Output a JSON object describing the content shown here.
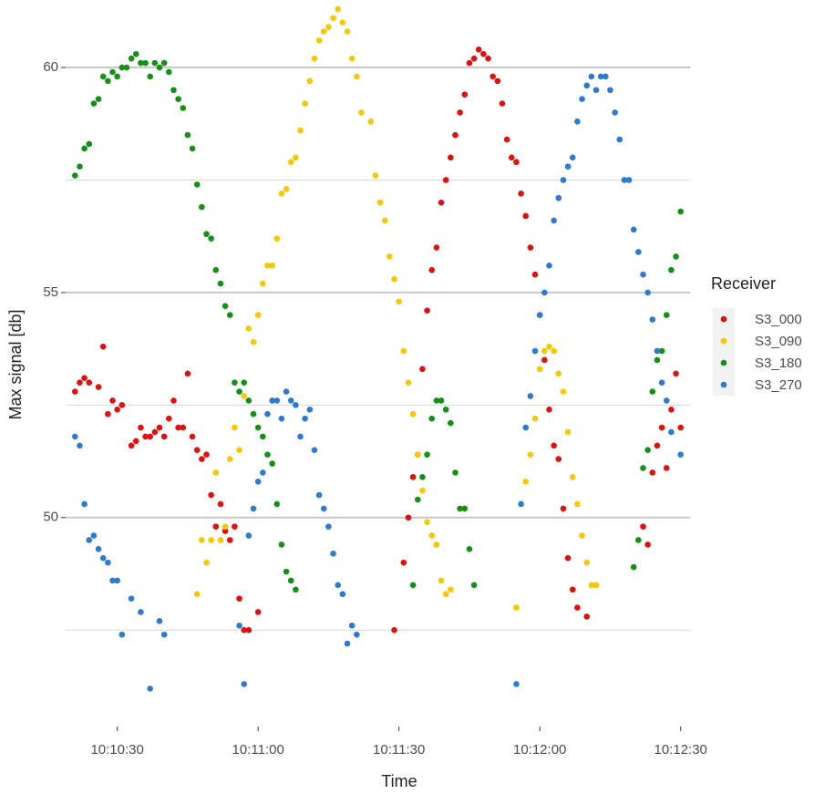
{
  "chart_data": {
    "type": "scatter",
    "xlabel": "Time",
    "ylabel": "Max signal [db]",
    "legend_title": "Receiver",
    "legend": "right",
    "xlim": [
      "10:10:19",
      "10:12:32"
    ],
    "xticks": [
      "10:10:30",
      "10:11:00",
      "10:11:30",
      "10:12:00",
      "10:12:30"
    ],
    "ylim": [
      45.6,
      61.5
    ],
    "yticks": [
      50,
      55,
      60
    ],
    "y_minor_grid": [
      47.5,
      52.5,
      57.5
    ],
    "grid": true,
    "series": [
      {
        "name": "S3_000",
        "color": "#e01010",
        "x": [
          "10:10:21",
          "10:10:22",
          "10:10:23",
          "10:10:24",
          "10:10:26",
          "10:10:27",
          "10:10:28",
          "10:10:29",
          "10:10:30",
          "10:10:31",
          "10:10:33",
          "10:10:34",
          "10:10:35",
          "10:10:36",
          "10:10:37",
          "10:10:38",
          "10:10:39",
          "10:10:40",
          "10:10:41",
          "10:10:42",
          "10:10:43",
          "10:10:44",
          "10:10:45",
          "10:10:46",
          "10:10:47",
          "10:10:48",
          "10:10:49",
          "10:10:50",
          "10:10:51",
          "10:10:52",
          "10:10:53",
          "10:10:54",
          "10:10:55",
          "10:10:56",
          "10:10:57",
          "10:10:58",
          "10:11:00",
          "10:11:29",
          "10:11:31",
          "10:11:32",
          "10:11:33",
          "10:11:34",
          "10:11:35",
          "10:11:36",
          "10:11:37",
          "10:11:38",
          "10:11:39",
          "10:11:40",
          "10:11:41",
          "10:11:42",
          "10:11:43",
          "10:11:44",
          "10:11:45",
          "10:11:46",
          "10:11:47",
          "10:11:48",
          "10:11:49",
          "10:11:50",
          "10:11:51",
          "10:11:52",
          "10:11:53",
          "10:11:54",
          "10:11:55",
          "10:11:56",
          "10:11:57",
          "10:11:58",
          "10:11:59",
          "10:12:00",
          "10:12:01",
          "10:12:02",
          "10:12:03",
          "10:12:04",
          "10:12:05",
          "10:12:06",
          "10:12:07",
          "10:12:08",
          "10:12:10",
          "10:12:22",
          "10:12:23",
          "10:12:24",
          "10:12:25",
          "10:12:26",
          "10:12:27",
          "10:12:28",
          "10:12:29",
          "10:12:30"
        ],
        "values": [
          52.8,
          53.0,
          53.1,
          53.0,
          52.9,
          53.8,
          52.3,
          52.6,
          52.4,
          52.5,
          51.6,
          51.7,
          52.0,
          51.8,
          51.8,
          51.9,
          52.0,
          51.8,
          52.2,
          52.6,
          52.0,
          52.0,
          53.2,
          51.8,
          51.5,
          51.3,
          51.4,
          50.5,
          49.8,
          50.3,
          49.7,
          49.5,
          49.8,
          48.2,
          47.5,
          47.5,
          47.9,
          47.5,
          49.0,
          50.0,
          50.9,
          51.4,
          53.3,
          54.6,
          55.5,
          56.0,
          57.0,
          57.5,
          58.0,
          58.5,
          59.0,
          59.4,
          60.1,
          60.2,
          60.4,
          60.3,
          60.2,
          59.8,
          59.7,
          59.2,
          58.4,
          58.0,
          57.9,
          57.2,
          56.7,
          56.0,
          55.4,
          54.5,
          53.5,
          52.4,
          51.6,
          51.3,
          50.2,
          49.1,
          48.4,
          48.0,
          47.8,
          49.8,
          49.4,
          51.0,
          51.6,
          52.0,
          51.1,
          52.4,
          53.2,
          52.0
        ]
      },
      {
        "name": "S3_090",
        "color": "#f5c800",
        "x": [
          "10:10:47",
          "10:10:48",
          "10:10:49",
          "10:10:50",
          "10:10:51",
          "10:10:52",
          "10:10:53",
          "10:10:54",
          "10:10:55",
          "10:10:56",
          "10:10:57",
          "10:10:58",
          "10:10:59",
          "10:11:00",
          "10:11:01",
          "10:11:02",
          "10:11:03",
          "10:11:04",
          "10:11:05",
          "10:11:06",
          "10:11:07",
          "10:11:08",
          "10:11:09",
          "10:11:10",
          "10:11:11",
          "10:11:12",
          "10:11:13",
          "10:11:14",
          "10:11:15",
          "10:11:16",
          "10:11:17",
          "10:11:18",
          "10:11:19",
          "10:11:20",
          "10:11:21",
          "10:11:22",
          "10:11:24",
          "10:11:25",
          "10:11:26",
          "10:11:27",
          "10:11:28",
          "10:11:29",
          "10:11:30",
          "10:11:31",
          "10:11:32",
          "10:11:33",
          "10:11:34",
          "10:11:35",
          "10:11:36",
          "10:11:37",
          "10:11:38",
          "10:11:39",
          "10:11:40",
          "10:11:41",
          "10:11:55",
          "10:11:56",
          "10:11:57",
          "10:11:58",
          "10:11:59",
          "10:12:00",
          "10:12:01",
          "10:12:02",
          "10:12:03",
          "10:12:04",
          "10:12:05",
          "10:12:06",
          "10:12:07",
          "10:12:08",
          "10:12:09",
          "10:12:10",
          "10:12:11",
          "10:12:12"
        ],
        "values": [
          48.3,
          49.5,
          49.0,
          49.5,
          51.0,
          49.5,
          49.8,
          51.3,
          52.0,
          51.5,
          52.7,
          54.2,
          53.9,
          54.5,
          55.2,
          55.6,
          55.6,
          56.2,
          57.2,
          57.3,
          57.9,
          58.0,
          58.6,
          59.2,
          59.7,
          60.2,
          60.6,
          60.8,
          60.9,
          61.1,
          61.3,
          61.0,
          60.8,
          60.2,
          59.8,
          59.0,
          58.8,
          57.6,
          57.0,
          56.6,
          55.8,
          55.3,
          54.8,
          53.7,
          53.0,
          52.3,
          51.4,
          50.6,
          49.9,
          49.6,
          49.4,
          48.6,
          48.3,
          48.4,
          48.0,
          50.3,
          50.8,
          51.4,
          52.2,
          53.3,
          53.7,
          53.8,
          53.7,
          53.2,
          52.8,
          51.9,
          50.9,
          50.3,
          49.6,
          49.0,
          48.5,
          48.5
        ]
      },
      {
        "name": "S3_180",
        "color": "#149014",
        "x": [
          "10:10:21",
          "10:10:22",
          "10:10:23",
          "10:10:24",
          "10:10:25",
          "10:10:26",
          "10:10:27",
          "10:10:28",
          "10:10:29",
          "10:10:30",
          "10:10:31",
          "10:10:32",
          "10:10:33",
          "10:10:34",
          "10:10:35",
          "10:10:36",
          "10:10:37",
          "10:10:38",
          "10:10:39",
          "10:10:40",
          "10:10:41",
          "10:10:42",
          "10:10:43",
          "10:10:44",
          "10:10:45",
          "10:10:46",
          "10:10:47",
          "10:10:48",
          "10:10:49",
          "10:10:50",
          "10:10:51",
          "10:10:52",
          "10:10:53",
          "10:10:54",
          "10:10:55",
          "10:10:56",
          "10:10:57",
          "10:10:58",
          "10:10:59",
          "10:11:00",
          "10:11:01",
          "10:11:02",
          "10:11:03",
          "10:11:04",
          "10:11:05",
          "10:11:06",
          "10:11:07",
          "10:11:08",
          "10:11:33",
          "10:11:34",
          "10:11:35",
          "10:11:36",
          "10:11:37",
          "10:11:38",
          "10:11:39",
          "10:11:40",
          "10:11:41",
          "10:11:42",
          "10:11:43",
          "10:11:44",
          "10:11:45",
          "10:11:46",
          "10:12:20",
          "10:12:21",
          "10:12:22",
          "10:12:23",
          "10:12:24",
          "10:12:25",
          "10:12:26",
          "10:12:27",
          "10:12:28",
          "10:12:29",
          "10:12:30"
        ],
        "values": [
          57.6,
          57.8,
          58.2,
          58.3,
          59.2,
          59.3,
          59.8,
          59.7,
          59.9,
          59.8,
          60.0,
          60.0,
          60.2,
          60.3,
          60.1,
          60.1,
          59.8,
          60.1,
          60.0,
          60.1,
          59.9,
          59.5,
          59.3,
          59.1,
          58.5,
          58.2,
          57.4,
          56.9,
          56.3,
          56.2,
          55.5,
          55.2,
          54.7,
          54.5,
          53.0,
          52.8,
          53.0,
          52.6,
          52.3,
          52.0,
          51.8,
          51.4,
          51.2,
          50.3,
          49.4,
          48.8,
          48.6,
          48.4,
          48.5,
          50.4,
          50.9,
          51.4,
          52.2,
          52.6,
          52.6,
          52.4,
          52.1,
          51.0,
          50.2,
          50.2,
          49.3,
          48.5,
          48.9,
          49.5,
          51.1,
          51.5,
          52.8,
          53.5,
          53.7,
          54.5,
          55.5,
          55.8,
          56.8
        ]
      },
      {
        "name": "S3_270",
        "color": "#2c7bd0",
        "x": [
          "10:10:21",
          "10:10:22",
          "10:10:23",
          "10:10:24",
          "10:10:25",
          "10:10:26",
          "10:10:27",
          "10:10:28",
          "10:10:29",
          "10:10:30",
          "10:10:31",
          "10:10:33",
          "10:10:35",
          "10:10:37",
          "10:10:39",
          "10:10:40",
          "10:10:56",
          "10:10:57",
          "10:10:58",
          "10:10:59",
          "10:11:00",
          "10:11:01",
          "10:11:02",
          "10:11:03",
          "10:11:04",
          "10:11:05",
          "10:11:06",
          "10:11:07",
          "10:11:08",
          "10:11:09",
          "10:11:10",
          "10:11:11",
          "10:11:12",
          "10:11:13",
          "10:11:14",
          "10:11:15",
          "10:11:16",
          "10:11:17",
          "10:11:18",
          "10:11:19",
          "10:11:20",
          "10:11:21",
          "10:11:55",
          "10:11:56",
          "10:11:57",
          "10:11:58",
          "10:11:59",
          "10:12:00",
          "10:12:01",
          "10:12:02",
          "10:12:03",
          "10:12:04",
          "10:12:05",
          "10:12:06",
          "10:12:07",
          "10:12:08",
          "10:12:09",
          "10:12:10",
          "10:12:11",
          "10:12:12",
          "10:12:13",
          "10:12:14",
          "10:12:15",
          "10:12:16",
          "10:12:17",
          "10:12:18",
          "10:12:19",
          "10:12:20",
          "10:12:21",
          "10:12:22",
          "10:12:23",
          "10:12:24",
          "10:12:25",
          "10:12:26",
          "10:12:27",
          "10:12:28",
          "10:12:30"
        ],
        "values": [
          51.8,
          51.6,
          50.3,
          49.5,
          49.6,
          49.3,
          49.1,
          49.0,
          48.6,
          48.6,
          47.4,
          48.2,
          47.9,
          46.2,
          47.7,
          47.4,
          47.6,
          46.3,
          49.6,
          50.2,
          50.8,
          51.0,
          52.3,
          52.6,
          52.6,
          52.2,
          52.8,
          52.6,
          52.5,
          51.8,
          52.2,
          52.4,
          51.5,
          50.5,
          50.2,
          49.8,
          49.2,
          48.5,
          48.3,
          47.2,
          47.6,
          47.4,
          46.3,
          50.3,
          52.0,
          52.7,
          53.7,
          54.5,
          55.0,
          55.6,
          56.6,
          57.1,
          57.5,
          57.8,
          58.0,
          58.8,
          59.3,
          59.6,
          59.8,
          59.5,
          59.8,
          59.8,
          59.5,
          59.0,
          58.4,
          57.5,
          57.5,
          56.4,
          55.9,
          55.4,
          55.0,
          54.4,
          53.7,
          53.0,
          52.6,
          51.9,
          51.4
        ]
      }
    ]
  }
}
